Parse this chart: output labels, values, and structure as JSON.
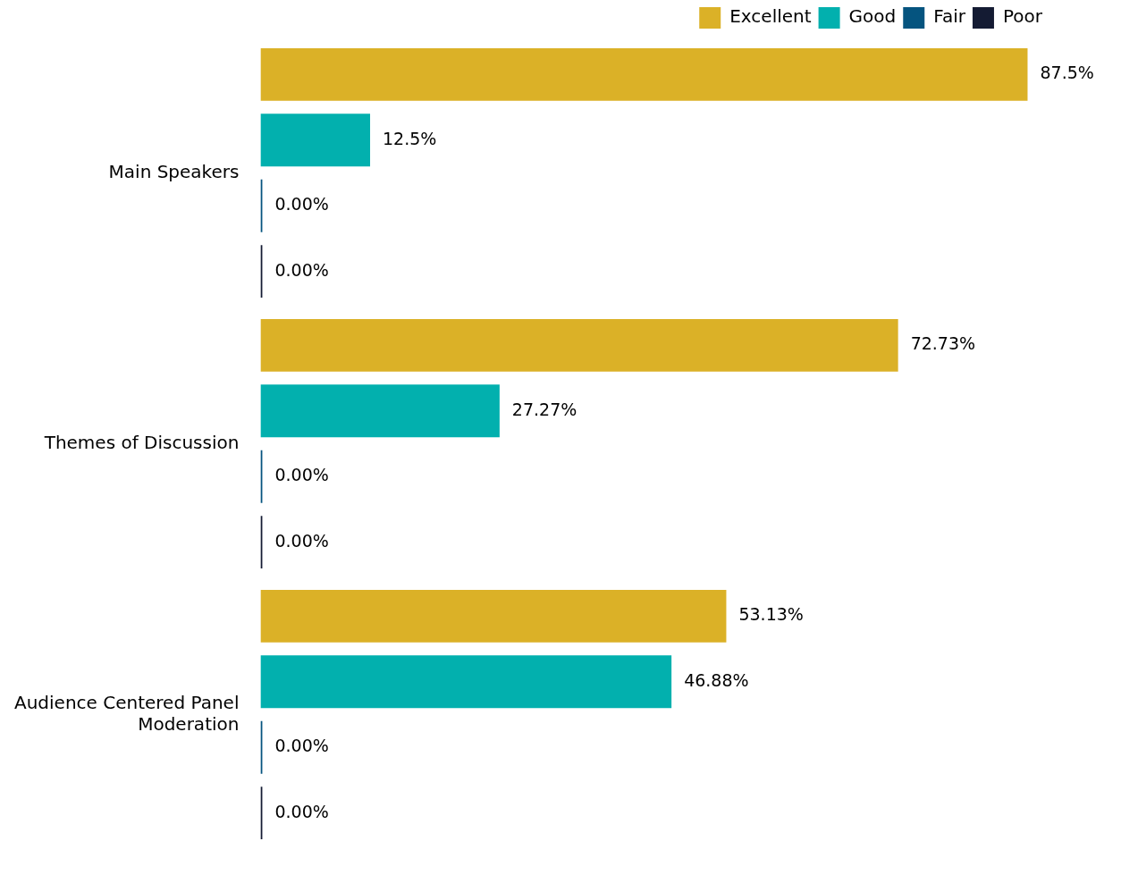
{
  "chart_data": {
    "type": "bar",
    "orientation": "horizontal",
    "categories": [
      "Main Speakers",
      "Themes of Discussion",
      "Audience Centered Panel Moderation"
    ],
    "series": [
      {
        "name": "Excellent",
        "color": "#dbb127",
        "values": [
          87.5,
          72.73,
          53.13
        ],
        "value_labels": [
          "87.5%",
          "72.73%",
          "53.13%"
        ]
      },
      {
        "name": "Good",
        "color": "#02b0ae",
        "values": [
          12.5,
          27.27,
          46.88
        ],
        "value_labels": [
          "12.5%",
          "27.27%",
          "46.88%"
        ]
      },
      {
        "name": "Fair",
        "color": "#05547f",
        "values": [
          0,
          0,
          0
        ],
        "value_labels": [
          "0.00%",
          "0.00%",
          "0.00%"
        ]
      },
      {
        "name": "Poor",
        "color": "#141b33",
        "values": [
          0,
          0,
          0
        ],
        "value_labels": [
          "0.00%",
          "0.00%",
          "0.00%"
        ]
      }
    ],
    "tick_labels": "y",
    "grid": false,
    "legend": "top right"
  }
}
